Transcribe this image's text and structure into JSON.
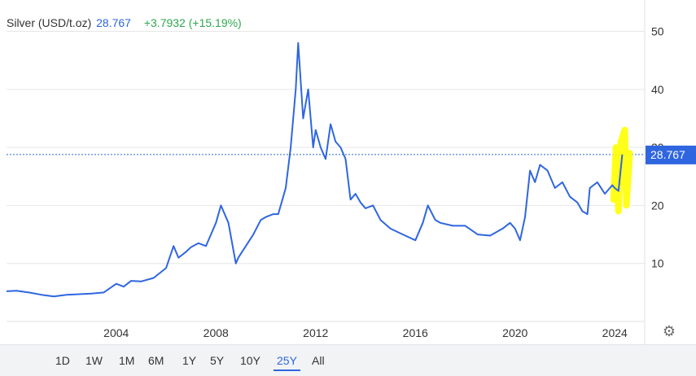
{
  "header": {
    "symbol": "Silver (USD/t.oz)",
    "price": "28.767",
    "change": "+3.7932 (+15.19%)"
  },
  "toolbar": {
    "ranges": [
      "1D",
      "1W",
      "1M",
      "6M",
      "1Y",
      "5Y",
      "10Y",
      "25Y",
      "All"
    ],
    "active": "25Y"
  },
  "colors": {
    "line": "#2f66e0",
    "highlight": "#ffff00",
    "positive": "#2fa84f",
    "price_tag": "#2f66e0"
  },
  "icons": {
    "settings": "gear-icon"
  },
  "chart_data": {
    "type": "line",
    "current_value": 28.767,
    "current_label": "28.767",
    "xlim": [
      1999.6,
      2025.2
    ],
    "ylim": [
      0,
      54
    ],
    "y_ticks": [
      10,
      20,
      30,
      40,
      50
    ],
    "x_ticks": [
      2004,
      2008,
      2012,
      2016,
      2020,
      2024
    ],
    "grid": "horizontal",
    "annotation": "yellow highlighter mark over early-2024 rally",
    "series": [
      {
        "x": [
          1999.6,
          2000.0,
          2000.5,
          2001.0,
          2001.5,
          2002.0,
          2002.5,
          2003.0,
          2003.5,
          2004.0,
          2004.3,
          2004.6,
          2005.0,
          2005.5,
          2006.0,
          2006.3,
          2006.5,
          2006.8,
          2007.0,
          2007.3,
          2007.6,
          2008.0,
          2008.2,
          2008.5,
          2008.8,
          2008.9,
          2009.2,
          2009.5,
          2009.8,
          2010.0,
          2010.3,
          2010.5,
          2010.8,
          2011.0,
          2011.2,
          2011.3,
          2011.5,
          2011.7,
          2011.9,
          2012.0,
          2012.2,
          2012.4,
          2012.6,
          2012.8,
          2013.0,
          2013.2,
          2013.4,
          2013.6,
          2013.8,
          2014.0,
          2014.3,
          2014.6,
          2015.0,
          2015.5,
          2016.0,
          2016.3,
          2016.5,
          2016.8,
          2017.0,
          2017.5,
          2018.0,
          2018.5,
          2019.0,
          2019.5,
          2019.8,
          2020.0,
          2020.2,
          2020.4,
          2020.6,
          2020.8,
          2021.0,
          2021.3,
          2021.6,
          2021.9,
          2022.2,
          2022.5,
          2022.7,
          2022.9,
          2023.0,
          2023.3,
          2023.6,
          2023.9,
          2024.0,
          2024.15,
          2024.3
        ],
        "values": [
          5.2,
          5.3,
          5.0,
          4.6,
          4.3,
          4.6,
          4.7,
          4.8,
          5.0,
          6.5,
          6.0,
          7.0,
          6.9,
          7.5,
          9.2,
          13.0,
          11.0,
          12.0,
          12.8,
          13.5,
          13.0,
          17.0,
          20.0,
          17.0,
          10.0,
          11.0,
          13.0,
          15.0,
          17.5,
          18.0,
          18.5,
          18.5,
          23.0,
          30.0,
          40.0,
          48.0,
          35.0,
          40.0,
          30.0,
          33.0,
          30.0,
          28.0,
          34.0,
          31.0,
          30.0,
          28.0,
          21.0,
          22.0,
          20.5,
          19.5,
          20.0,
          17.5,
          16.0,
          15.0,
          14.0,
          17.0,
          20.0,
          17.5,
          17.0,
          16.5,
          16.5,
          15.0,
          14.8,
          16.0,
          17.0,
          16.0,
          14.0,
          18.0,
          26.0,
          24.0,
          27.0,
          26.0,
          23.0,
          24.0,
          21.5,
          20.5,
          19.0,
          18.5,
          23.0,
          24.0,
          22.0,
          23.5,
          23.0,
          22.5,
          28.767
        ]
      }
    ]
  }
}
